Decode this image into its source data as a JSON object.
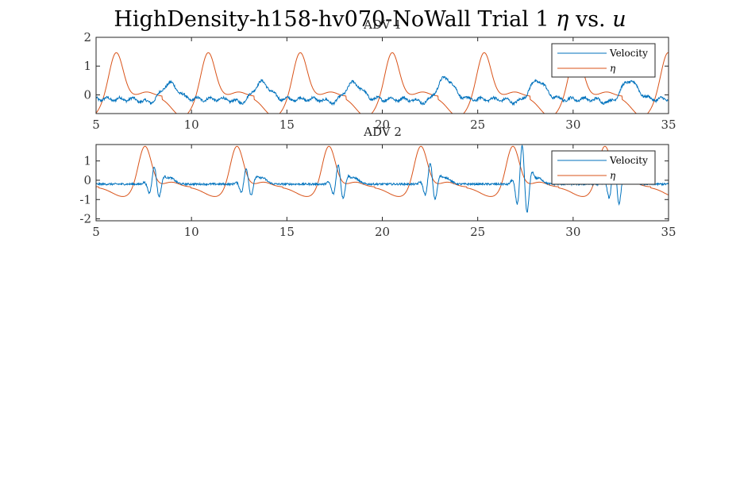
{
  "figure_title": {
    "prefix": "HighDensity-h158-hv070-NoWall Trial 1 ",
    "eta": "η",
    "middle": " vs. ",
    "u": "u"
  },
  "colors": {
    "velocity": "#0072BD",
    "eta": "#D95319",
    "axis": "#262626"
  },
  "chart_data": [
    {
      "type": "line",
      "title": "ADV 1",
      "xlabel": "",
      "ylabel": "",
      "xlim": [
        5,
        35
      ],
      "ylim": [
        -0.65,
        2.0
      ],
      "xticks": [
        5,
        10,
        15,
        20,
        25,
        30,
        35
      ],
      "yticks": [
        0,
        1,
        2
      ],
      "legend": {
        "placement": "top-right",
        "entries": [
          "Velocity",
          "η"
        ]
      },
      "series": [
        {
          "name": "Velocity",
          "color": "#0072BD",
          "period": 4.82,
          "phase": 8.85,
          "peaks": [
            0.5,
            0.4,
            0.44,
            0.42,
            0.6,
            0.5,
            0.5
          ],
          "base": -0.15,
          "noise": 0.045,
          "ripple": 0.06
        },
        {
          "name": "η",
          "color": "#D95319",
          "period": 4.82,
          "phase": 6.05,
          "amplitude": 1.5,
          "bump_offset": 1.6,
          "bump_height": 0.15,
          "base": -0.05,
          "trough": -0.75
        }
      ]
    },
    {
      "type": "line",
      "title": "ADV 2",
      "xlabel": "",
      "ylabel": "",
      "xlim": [
        5,
        35
      ],
      "ylim": [
        -2.1,
        1.85
      ],
      "xticks": [
        5,
        10,
        15,
        20,
        25,
        30,
        35
      ],
      "yticks": [
        -2,
        -1,
        0,
        1
      ],
      "legend": {
        "placement": "top-right",
        "entries": [
          "Velocity",
          "η"
        ]
      },
      "series": [
        {
          "name": "Velocity",
          "color": "#0072BD",
          "period": 4.82,
          "phase": 7.55,
          "burst_amplitudes": [
            0.9,
            0.8,
            1.0,
            1.1,
            2.0,
            1.4
          ],
          "base": -0.2,
          "noise": 0.05
        },
        {
          "name": "η",
          "color": "#D95319",
          "period": 4.82,
          "phase": 7.55,
          "amplitude": 1.85,
          "base": -0.35,
          "trough": -0.85
        }
      ]
    }
  ]
}
